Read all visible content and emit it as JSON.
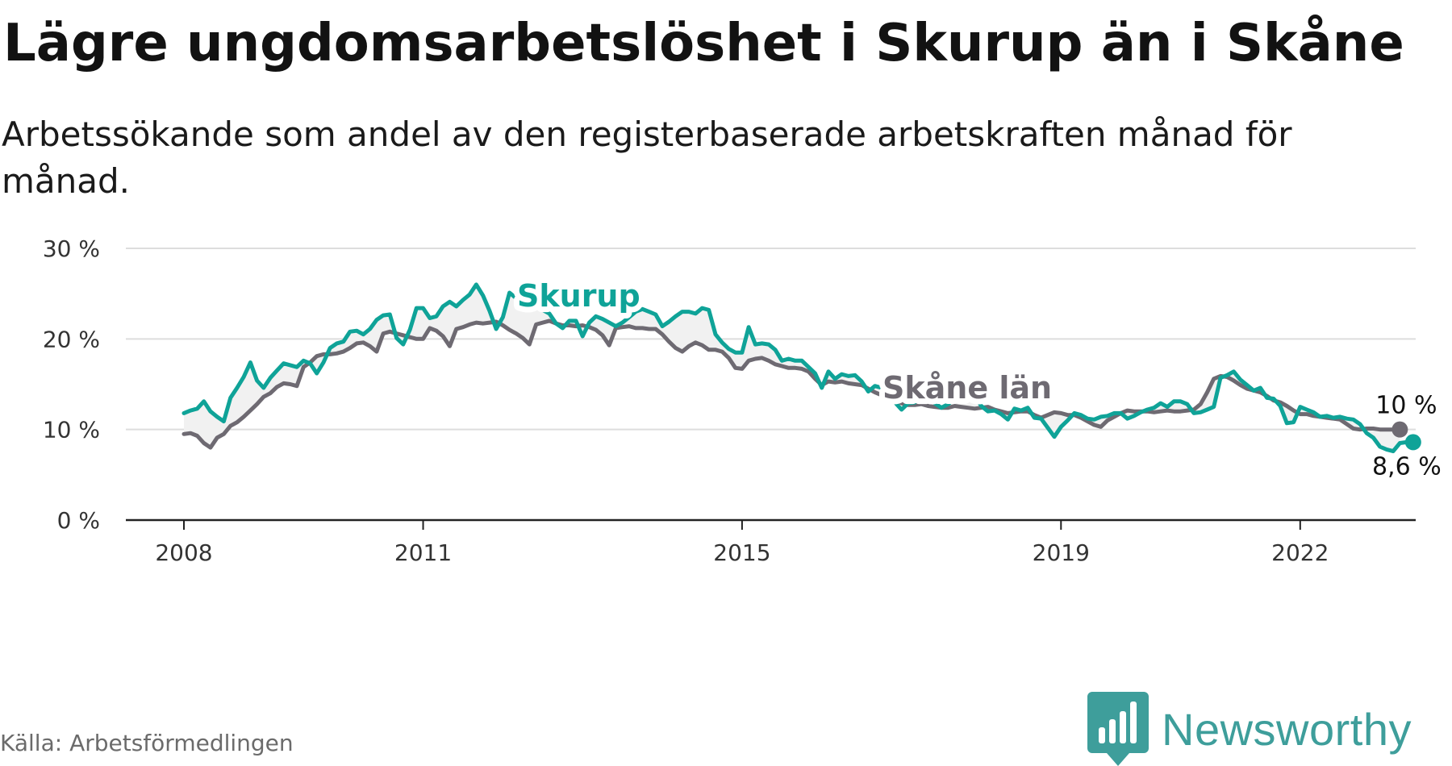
{
  "title": "Lägre ungdomsarbetslöshet i Skurup än i Skåne",
  "subtitle": "Arbetssökande som andel av den registerbaserade arbetskraften månad för månad.",
  "source": "Källa: Arbetsförmedlingen",
  "logo": {
    "text": "Newsworthy",
    "color": "#3e9e9b",
    "icon": "bar-chart-logo-icon"
  },
  "colors": {
    "skurup": "#0fa398",
    "skane": "#6e6a72",
    "grid": "#dddddd",
    "axis": "#222222"
  },
  "chart_data": {
    "type": "line",
    "title": "Lägre ungdomsarbetslöshet i Skurup än i Skåne",
    "xlabel": "",
    "ylabel": "",
    "start": "2008-01",
    "frequency": "monthly",
    "xlim": [
      2008.0,
      2022.7
    ],
    "ylim": [
      0,
      30
    ],
    "yticks": [
      0,
      10,
      20,
      30
    ],
    "ytick_labels": [
      "0 %",
      "10 %",
      "20 %",
      "30 %"
    ],
    "xticks": [
      2008,
      2011,
      2015,
      2019,
      2022
    ],
    "xtick_labels": [
      "2008",
      "2011",
      "2015",
      "2019",
      "2022"
    ],
    "grid": true,
    "series": [
      {
        "name": "Skurup",
        "label": "Skurup",
        "end_label": "8,6 %",
        "values": [
          11.8,
          12.1,
          12.3,
          13.1,
          12.0,
          11.4,
          10.9,
          13.5,
          14.6,
          15.8,
          17.4,
          15.4,
          14.6,
          15.7,
          16.5,
          17.3,
          17.1,
          16.9,
          17.6,
          17.3,
          16.2,
          17.4,
          19.0,
          19.5,
          19.7,
          20.8,
          20.9,
          20.5,
          21.1,
          22.1,
          22.6,
          22.7,
          20.1,
          19.4,
          21.0,
          23.4,
          23.4,
          22.3,
          22.5,
          23.6,
          24.1,
          23.6,
          24.3,
          24.9,
          26.0,
          24.8,
          23.1,
          21.1,
          22.4,
          25.1,
          24.5,
          23.5,
          24.1,
          24.1,
          23.2,
          22.8,
          21.7,
          21.2,
          22.0,
          22.0,
          20.3,
          21.8,
          22.5,
          22.2,
          21.8,
          21.4,
          21.8,
          22.4,
          23.0,
          23.3,
          23.0,
          22.7,
          21.4,
          21.9,
          22.5,
          23.0,
          23.0,
          22.8,
          23.4,
          23.2,
          20.5,
          19.6,
          18.9,
          18.5,
          18.5,
          21.3,
          19.4,
          19.5,
          19.4,
          18.8,
          17.6,
          17.8,
          17.6,
          17.6,
          16.9,
          16.2,
          14.6,
          16.4,
          15.6,
          16.1,
          15.9,
          16.0,
          15.3,
          14.2,
          14.8,
          14.6,
          13.9,
          13.0,
          12.2,
          12.9,
          13.0,
          13.7,
          14.2,
          12.9,
          12.4,
          12.8,
          13.4,
          14.0,
          13.3,
          13.8,
          12.6,
          12.0,
          12.1,
          11.7,
          11.1,
          12.3,
          12.1,
          12.4,
          11.3,
          11.2,
          10.2,
          9.2,
          10.3,
          11.0,
          11.8,
          11.6,
          11.2,
          11.1,
          11.4,
          11.5,
          11.8,
          11.8,
          11.2,
          11.5,
          11.9,
          12.2,
          12.4,
          12.9,
          12.5,
          13.1,
          13.1,
          12.8,
          11.8,
          11.9,
          12.2,
          12.5,
          15.7,
          16.0,
          16.4,
          15.5,
          14.9,
          14.3,
          14.6,
          13.5,
          13.4,
          12.6,
          10.7,
          10.8,
          12.5,
          12.2,
          11.9,
          11.4,
          11.5,
          11.3,
          11.4,
          11.2,
          11.1,
          10.6,
          9.6,
          9.1,
          8.1,
          7.8,
          7.6,
          8.5,
          8.6,
          8.6
        ]
      },
      {
        "name": "Skåne län",
        "label": "Skåne län",
        "end_label": "10 %",
        "values": [
          9.5,
          9.6,
          9.3,
          8.5,
          8.0,
          9.1,
          9.5,
          10.4,
          10.8,
          11.4,
          12.1,
          12.8,
          13.6,
          14.0,
          14.7,
          15.1,
          15.0,
          14.8,
          16.9,
          17.4,
          18.1,
          18.3,
          18.3,
          18.4,
          18.6,
          19.0,
          19.5,
          19.6,
          19.2,
          18.6,
          20.6,
          20.8,
          20.6,
          20.4,
          20.2,
          20.0,
          20.0,
          21.2,
          20.9,
          20.3,
          19.2,
          21.1,
          21.3,
          21.6,
          21.8,
          21.7,
          21.8,
          21.9,
          21.5,
          21.0,
          20.6,
          20.1,
          19.4,
          21.6,
          21.8,
          22.0,
          21.7,
          21.5,
          21.5,
          21.4,
          21.5,
          21.3,
          21.0,
          20.4,
          19.3,
          21.2,
          21.3,
          21.4,
          21.2,
          21.2,
          21.1,
          21.1,
          20.5,
          19.7,
          19.0,
          18.6,
          19.2,
          19.6,
          19.3,
          18.8,
          18.8,
          18.6,
          17.9,
          16.8,
          16.7,
          17.6,
          17.8,
          17.9,
          17.6,
          17.2,
          17.0,
          16.8,
          16.8,
          16.7,
          16.4,
          15.6,
          14.9,
          15.3,
          15.2,
          15.3,
          15.1,
          15.0,
          14.9,
          14.5,
          14.1,
          13.8,
          13.5,
          13.2,
          12.9,
          12.7,
          12.7,
          12.8,
          12.6,
          12.5,
          12.4,
          12.4,
          12.6,
          12.5,
          12.4,
          12.3,
          12.4,
          12.5,
          12.2,
          12.0,
          11.8,
          11.9,
          12.0,
          12.0,
          11.6,
          11.3,
          11.6,
          11.9,
          11.8,
          11.6,
          11.6,
          11.3,
          10.9,
          10.5,
          10.3,
          11.0,
          11.4,
          11.8,
          12.1,
          12.0,
          12.0,
          12.0,
          11.9,
          12.0,
          12.1,
          12.0,
          12.0,
          12.1,
          12.2,
          12.8,
          14.1,
          15.6,
          15.9,
          15.8,
          15.4,
          14.9,
          14.5,
          14.3,
          14.1,
          13.7,
          13.2,
          13.0,
          12.6,
          12.1,
          11.7,
          11.7,
          11.5,
          11.4,
          11.3,
          11.2,
          11.1,
          10.6,
          10.1,
          10.0,
          10.1,
          10.1,
          10.0,
          10.0,
          10.0,
          10.0
        ]
      }
    ]
  }
}
